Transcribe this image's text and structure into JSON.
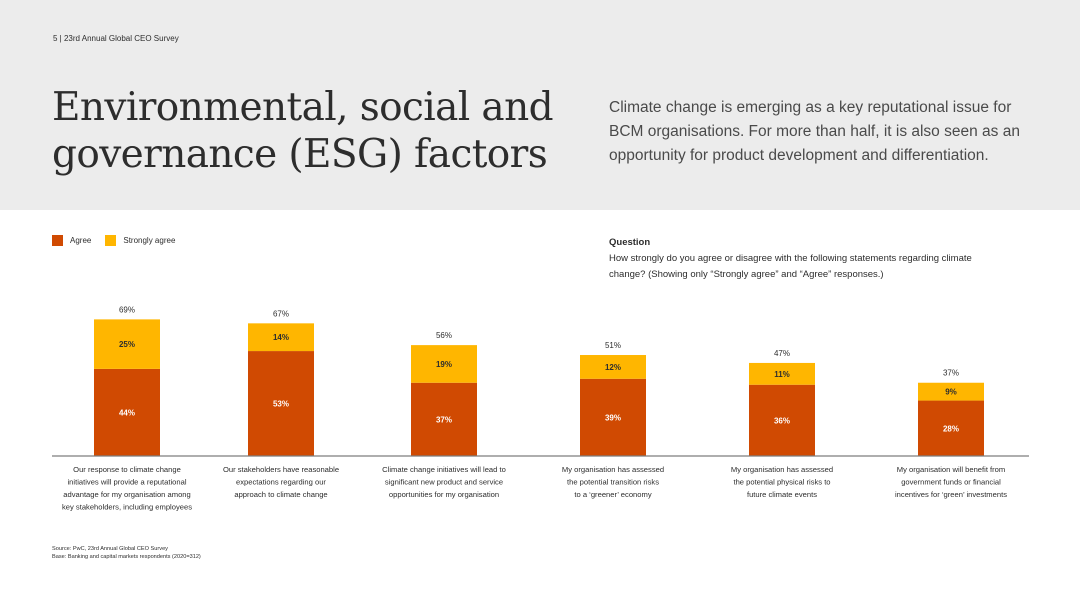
{
  "header": {
    "page_line": "5  |  23rd Annual Global CEO Survey"
  },
  "title": "Environmental, social and governance (ESG) factors",
  "intro": "Climate change is emerging as a key reputational issue for BCM organisations. For more than half, it is also seen as an opportunity for product development and differentiation.",
  "legend": {
    "agree": "Agree",
    "strongly_agree": "Strongly agree"
  },
  "question": {
    "heading": "Question",
    "text": "How strongly do you agree or disagree with the following statements regarding climate change? (Showing only “Strongly agree” and “Agree” responses.)"
  },
  "colors": {
    "agree": "#d04a02",
    "strongly_agree": "#ffb600",
    "axis": "#7d7d7d"
  },
  "chart_data": {
    "type": "bar",
    "stacked": true,
    "categories": [
      "Our response to climate change initiatives will provide a reputational advantage for my organisation among key stakeholders, including employees",
      "Our stakeholders have reasonable expectations regarding our approach to climate change",
      "Climate change initiatives will lead to significant new product and service opportunities for my organisation",
      "My organisation has assessed the potential transition risks to a ‘greener’ economy",
      "My organisation has assessed the potential physical risks to future climate events",
      "My organisation will benefit from government funds or financial incentives for ‘green’ investments"
    ],
    "category_lines": [
      [
        "Our response to climate change",
        "initiatives will provide a reputational",
        "advantage for my organisation among",
        "key stakeholders, including employees"
      ],
      [
        "Our stakeholders have reasonable",
        "expectations regarding our",
        "approach to climate change"
      ],
      [
        "Climate change initiatives will lead to",
        "significant new product and service",
        "opportunities for my organisation"
      ],
      [
        "My organisation has assessed",
        "the potential transition risks",
        "to a ‘greener’ economy"
      ],
      [
        "My organisation has assessed",
        "the potential physical risks to",
        "future climate events"
      ],
      [
        "My organisation will benefit from",
        "government funds or financial",
        "incentives for ‘green’ investments"
      ]
    ],
    "series": [
      {
        "name": "Agree",
        "values": [
          44,
          53,
          37,
          39,
          36,
          28
        ],
        "labels": [
          "44%",
          "53%",
          "37%",
          "39%",
          "36%",
          "28%"
        ]
      },
      {
        "name": "Strongly agree",
        "values": [
          25,
          14,
          19,
          12,
          11,
          9
        ],
        "labels": [
          "25%",
          "14%",
          "19%",
          "12%",
          "11%",
          "9%"
        ]
      }
    ],
    "totals": [
      69,
      67,
      56,
      51,
      47,
      37
    ],
    "total_labels": [
      "69%",
      "67%",
      "56%",
      "51%",
      "47%",
      "37%"
    ],
    "ylim": [
      0,
      100
    ],
    "grid": false
  },
  "footnote": {
    "source": "Source: PwC, 23rd Annual Global CEO Survey",
    "base": "Base: Banking and capital markets respondents (2020=312)"
  }
}
